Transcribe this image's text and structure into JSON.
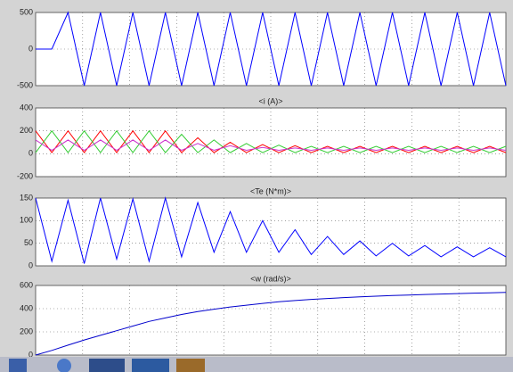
{
  "chart_data": [
    {
      "type": "line",
      "x": [
        0,
        1,
        2,
        3,
        4,
        5,
        6,
        7,
        8,
        9,
        10,
        11,
        12,
        13,
        14,
        15,
        16,
        17,
        18,
        19,
        20,
        21,
        22,
        23,
        24,
        25,
        26,
        27,
        28,
        29
      ],
      "xlim": [
        0,
        29
      ],
      "ylim": [
        -500,
        500
      ],
      "yticks": [
        -500,
        0,
        500
      ],
      "grid": true,
      "series": [
        {
          "color": "#0000ff",
          "values": [
            0,
            0,
            500,
            -500,
            500,
            -500,
            500,
            -500,
            500,
            -500,
            500,
            -500,
            500,
            -500,
            500,
            -500,
            500,
            -500,
            500,
            -500,
            500,
            -500,
            500,
            -500,
            500,
            -500,
            500,
            -500,
            500,
            -500
          ]
        }
      ]
    },
    {
      "type": "line",
      "title": "<i (A)>",
      "x": [
        0,
        1,
        2,
        3,
        4,
        5,
        6,
        7,
        8,
        9,
        10,
        11,
        12,
        13,
        14,
        15,
        16,
        17,
        18,
        19,
        20,
        21,
        22,
        23,
        24,
        25,
        26,
        27,
        28,
        29
      ],
      "xlim": [
        0,
        29
      ],
      "ylim": [
        -200,
        400
      ],
      "yticks": [
        -200,
        0,
        200,
        400
      ],
      "grid": true,
      "series": [
        {
          "color": "#ff0000",
          "values": [
            200,
            10,
            200,
            10,
            200,
            10,
            200,
            10,
            200,
            10,
            140,
            10,
            100,
            10,
            80,
            10,
            70,
            10,
            65,
            10,
            65,
            10,
            65,
            10,
            65,
            10,
            65,
            10,
            65,
            10
          ]
        },
        {
          "color": "#33cc33",
          "values": [
            10,
            200,
            10,
            200,
            10,
            200,
            10,
            200,
            10,
            170,
            10,
            120,
            10,
            90,
            10,
            75,
            10,
            65,
            10,
            65,
            10,
            65,
            10,
            65,
            10,
            65,
            10,
            65,
            10,
            65
          ]
        },
        {
          "color": "#cc33cc",
          "values": [
            120,
            30,
            120,
            30,
            120,
            30,
            120,
            30,
            120,
            30,
            90,
            30,
            70,
            30,
            55,
            30,
            50,
            30,
            50,
            30,
            50,
            30,
            50,
            30,
            50,
            30,
            50,
            30,
            50,
            30
          ]
        }
      ]
    },
    {
      "type": "line",
      "title": "<Te (N*m)>",
      "x": [
        0,
        1,
        2,
        3,
        4,
        5,
        6,
        7,
        8,
        9,
        10,
        11,
        12,
        13,
        14,
        15,
        16,
        17,
        18,
        19,
        20,
        21,
        22,
        23,
        24,
        25,
        26,
        27,
        28,
        29
      ],
      "xlim": [
        0,
        29
      ],
      "ylim": [
        0,
        150
      ],
      "yticks": [
        0,
        50,
        100,
        150
      ],
      "grid": true,
      "series": [
        {
          "color": "#0000ff",
          "values": [
            150,
            10,
            145,
            5,
            150,
            15,
            148,
            10,
            150,
            20,
            140,
            30,
            120,
            30,
            100,
            30,
            80,
            25,
            65,
            25,
            55,
            22,
            50,
            22,
            45,
            20,
            42,
            20,
            40,
            20
          ]
        }
      ]
    },
    {
      "type": "line",
      "title": "<w (rad/s)>",
      "x": [
        0,
        1,
        2,
        3,
        4,
        5,
        6,
        7,
        8,
        9,
        10,
        11,
        12,
        13,
        14,
        15,
        16,
        17,
        18,
        19,
        20,
        21,
        22,
        23,
        24,
        25,
        26,
        27,
        28,
        29
      ],
      "xlim": [
        0,
        29
      ],
      "ylim": [
        0,
        600
      ],
      "yticks": [
        0,
        200,
        400,
        600
      ],
      "grid": true,
      "series": [
        {
          "color": "#0000cc",
          "values": [
            0,
            40,
            85,
            130,
            170,
            210,
            250,
            290,
            320,
            350,
            375,
            395,
            415,
            430,
            445,
            460,
            470,
            480,
            488,
            495,
            502,
            508,
            513,
            518,
            522,
            526,
            530,
            534,
            537,
            540
          ]
        }
      ]
    }
  ]
}
